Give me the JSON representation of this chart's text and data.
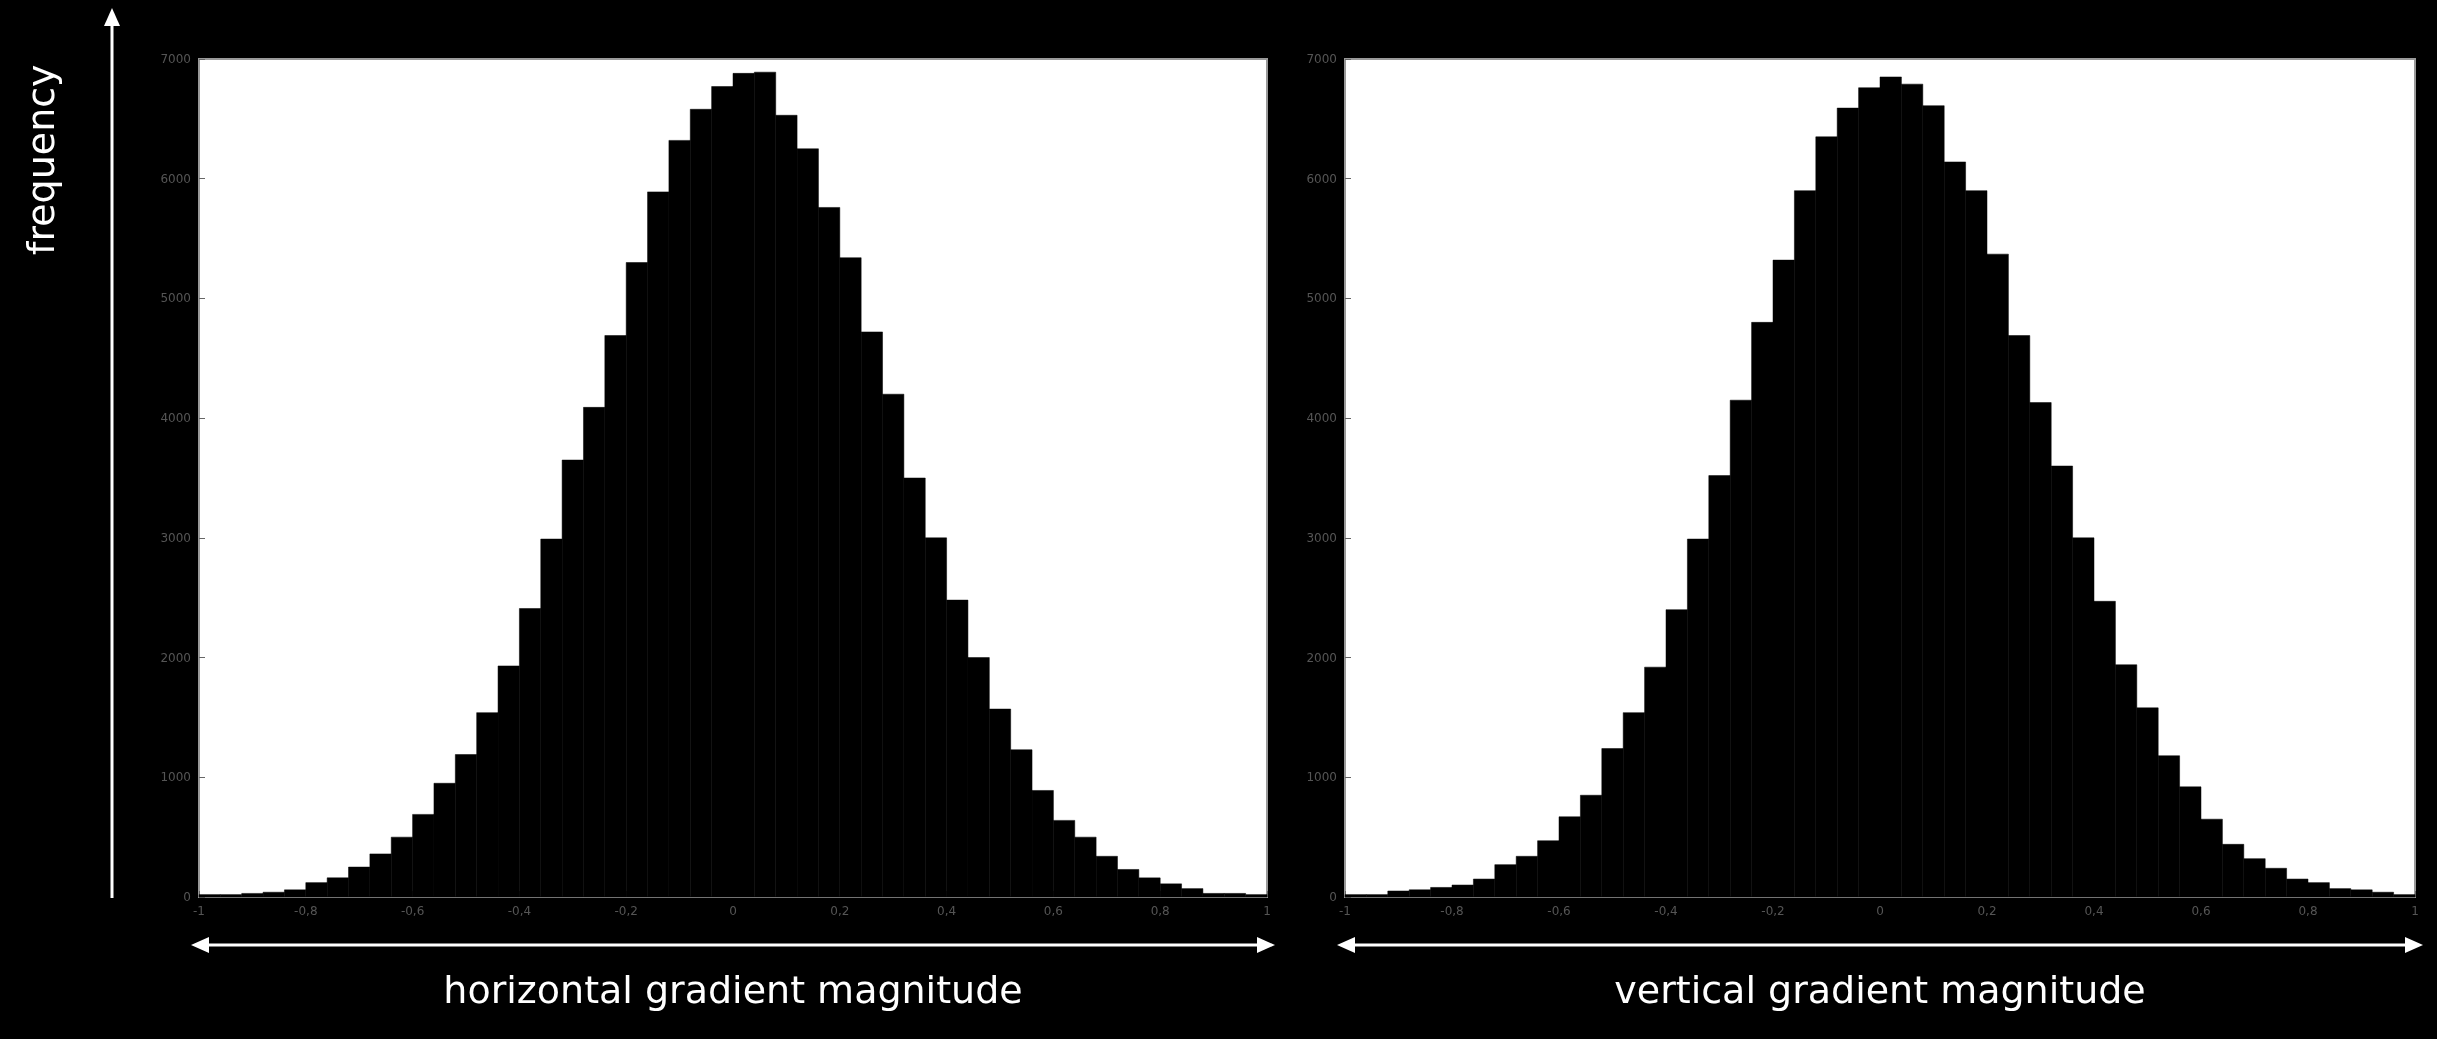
{
  "chart_data": [
    {
      "type": "histogram",
      "xlabel": "horizontal gradient magnitude",
      "ylabel": "frequency",
      "color": "#000000",
      "bins": [
        -1,
        -0.96,
        -0.92,
        -0.88,
        -0.84,
        -0.8,
        -0.76,
        -0.72,
        -0.68,
        -0.64,
        -0.6,
        -0.56,
        -0.52,
        -0.48,
        -0.44,
        -0.4,
        -0.36,
        -0.32,
        -0.28,
        -0.24,
        -0.2,
        -0.16,
        -0.12,
        -0.08,
        -0.04,
        0,
        0.04,
        0.08,
        0.12,
        0.16,
        0.2,
        0.24,
        0.28,
        0.32,
        0.36,
        0.4,
        0.44,
        0.48,
        0.52,
        0.56,
        0.6,
        0.64,
        0.68,
        0.72,
        0.76,
        0.8,
        0.84,
        0.88,
        0.92,
        0.96,
        1
      ],
      "values": [
        20,
        20,
        30,
        40,
        60,
        120,
        160,
        250,
        360,
        500,
        690,
        950,
        1190,
        1540,
        1930,
        2410,
        2990,
        3650,
        4090,
        4690,
        5300,
        5890,
        6320,
        6580,
        6770,
        6880,
        6890,
        6530,
        6250,
        5760,
        5340,
        4720,
        4200,
        3500,
        3000,
        2480,
        2000,
        1570,
        1230,
        890,
        640,
        500,
        340,
        230,
        160,
        110,
        70,
        30,
        30,
        20
      ],
      "xlim": [
        -1,
        1
      ],
      "ylim": [
        0,
        7000
      ],
      "xticks": [
        -1,
        {
          "value": -0.8,
          "label": "-0,8"
        },
        {
          "value": -0.6,
          "label": "-0,6"
        },
        {
          "value": -0.4,
          "label": "-0,4"
        },
        {
          "value": -0.2,
          "label": "-0,2"
        },
        0,
        {
          "value": 0.2,
          "label": "0,2"
        },
        {
          "value": 0.4,
          "label": "0,4"
        },
        {
          "value": 0.6,
          "label": "0,6"
        },
        {
          "value": 0.8,
          "label": "0,8"
        },
        1
      ],
      "yticks": [
        0,
        1000,
        2000,
        3000,
        4000,
        5000,
        6000,
        7000
      ]
    },
    {
      "type": "histogram",
      "xlabel": "vertical gradient magnitude",
      "color": "#000000",
      "bins": [
        -1,
        -0.96,
        -0.92,
        -0.88,
        -0.84,
        -0.8,
        -0.76,
        -0.72,
        -0.68,
        -0.64,
        -0.6,
        -0.56,
        -0.52,
        -0.48,
        -0.44,
        -0.4,
        -0.36,
        -0.32,
        -0.28,
        -0.24,
        -0.2,
        -0.16,
        -0.12,
        -0.08,
        -0.04,
        0,
        0.04,
        0.08,
        0.12,
        0.16,
        0.2,
        0.24,
        0.28,
        0.32,
        0.36,
        0.4,
        0.44,
        0.48,
        0.52,
        0.56,
        0.6,
        0.64,
        0.68,
        0.72,
        0.76,
        0.8,
        0.84,
        0.88,
        0.92,
        0.96,
        1
      ],
      "values": [
        20,
        20,
        50,
        60,
        80,
        100,
        150,
        270,
        340,
        470,
        670,
        850,
        1240,
        1540,
        1920,
        2400,
        2990,
        3520,
        4150,
        4800,
        5320,
        5900,
        6350,
        6590,
        6760,
        6850,
        6790,
        6610,
        6140,
        5900,
        5370,
        4690,
        4130,
        3600,
        3000,
        2470,
        1940,
        1580,
        1180,
        920,
        650,
        440,
        320,
        240,
        150,
        120,
        70,
        60,
        40,
        20
      ],
      "xlim": [
        -1,
        1
      ],
      "ylim": [
        0,
        7000
      ],
      "xticks": [
        -1,
        {
          "value": -0.8,
          "label": "-0,8"
        },
        {
          "value": -0.6,
          "label": "-0,6"
        },
        {
          "value": -0.4,
          "label": "-0,4"
        },
        {
          "value": -0.2,
          "label": "-0,2"
        },
        0,
        {
          "value": 0.2,
          "label": "0,2"
        },
        {
          "value": 0.4,
          "label": "0,4"
        },
        {
          "value": 0.6,
          "label": "0,6"
        },
        {
          "value": 0.8,
          "label": "0,8"
        },
        1
      ],
      "yticks": [
        0,
        1000,
        2000,
        3000,
        4000,
        5000,
        6000,
        7000
      ]
    }
  ]
}
